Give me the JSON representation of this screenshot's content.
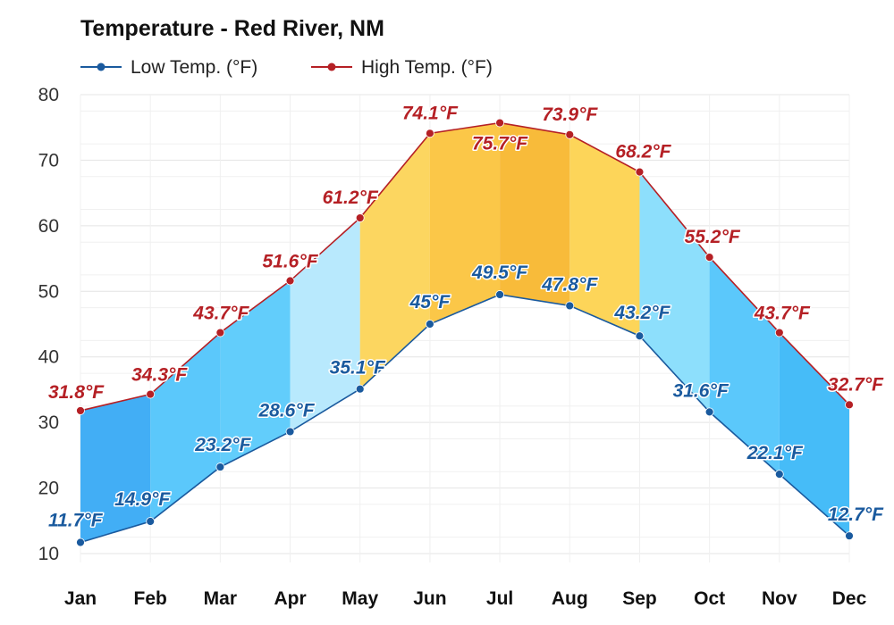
{
  "chart_data": {
    "type": "line",
    "title": "Temperature - Red River, NM",
    "categories": [
      "Jan",
      "Feb",
      "Mar",
      "Apr",
      "May",
      "Jun",
      "Jul",
      "Aug",
      "Sep",
      "Oct",
      "Nov",
      "Dec"
    ],
    "ylim": [
      10,
      80
    ],
    "yticks": [
      10,
      20,
      30,
      40,
      50,
      60,
      70,
      80
    ],
    "grid": true,
    "legend_position": "top-left",
    "series": [
      {
        "name": "Low Temp. (°F)",
        "color": "#1a5a9e",
        "values": [
          11.7,
          14.9,
          23.2,
          28.6,
          35.1,
          45,
          49.5,
          47.8,
          43.2,
          31.6,
          22.1,
          12.7
        ],
        "labels": [
          "11.7°F",
          "14.9°F",
          "23.2°F",
          "28.6°F",
          "35.1°F",
          "45°F",
          "49.5°F",
          "47.8°F",
          "43.2°F",
          "31.6°F",
          "22.1°F",
          "12.7°F"
        ]
      },
      {
        "name": "High Temp. (°F)",
        "color": "#b52025",
        "values": [
          31.8,
          34.3,
          43.7,
          51.6,
          61.2,
          74.1,
          75.7,
          73.9,
          68.2,
          55.2,
          43.7,
          32.7
        ],
        "labels": [
          "31.8°F",
          "34.3°F",
          "43.7°F",
          "51.6°F",
          "61.2°F",
          "74.1°F",
          "75.7°F",
          "73.9°F",
          "68.2°F",
          "55.2°F",
          "43.7°F",
          "32.7°F"
        ]
      }
    ],
    "band_colors": [
      "#42aef5",
      "#5bc8fb",
      "#62cdfb",
      "#b8e9fd",
      "#fcd660",
      "#fbc748",
      "#f8bb3a",
      "#fdd559",
      "#8ddffc",
      "#5bc8fb",
      "#46bcf8",
      "#3aa8f4"
    ]
  }
}
